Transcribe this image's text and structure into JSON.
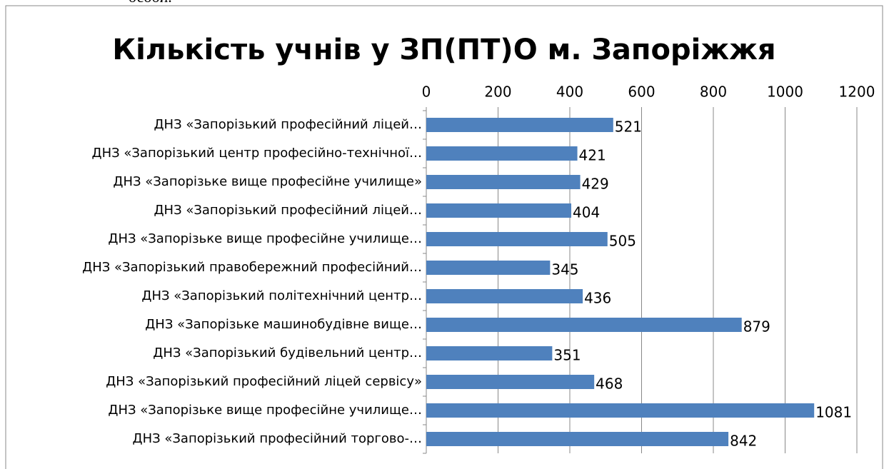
{
  "page_fragment": "особи.",
  "chart_data": {
    "type": "hbar",
    "title": "Кількість учнів у ЗП(ПТ)О м. Запоріжжя",
    "categories": [
      "ДНЗ «Запорізький професійний ліцей…",
      "ДНЗ «Запорізький центр професійно-технічної…",
      "ДНЗ «Запорізьке вище професійне училище»",
      "ДНЗ «Запорізький професійний ліцей…",
      "ДНЗ «Запорізьке вище професійне училище…",
      "ДНЗ «Запорізький правобережний професійний…",
      "ДНЗ «Запорізький політехнічний центр…",
      "ДНЗ «Запорізьке машинобудівне вище…",
      "ДНЗ «Запорізький будівельний центр…",
      "ДНЗ «Запорізький професійний ліцей сервісу»",
      "ДНЗ «Запорізьке вище професійне училище…",
      "ДНЗ «Запорізький професійний торгово-…"
    ],
    "values": [
      521,
      421,
      429,
      404,
      505,
      345,
      436,
      879,
      351,
      468,
      1081,
      842
    ],
    "color": "#4f81bd",
    "xlim": [
      0,
      1200
    ],
    "xticks": [
      0,
      200,
      400,
      600,
      800,
      1000,
      1200
    ],
    "grid": true
  }
}
